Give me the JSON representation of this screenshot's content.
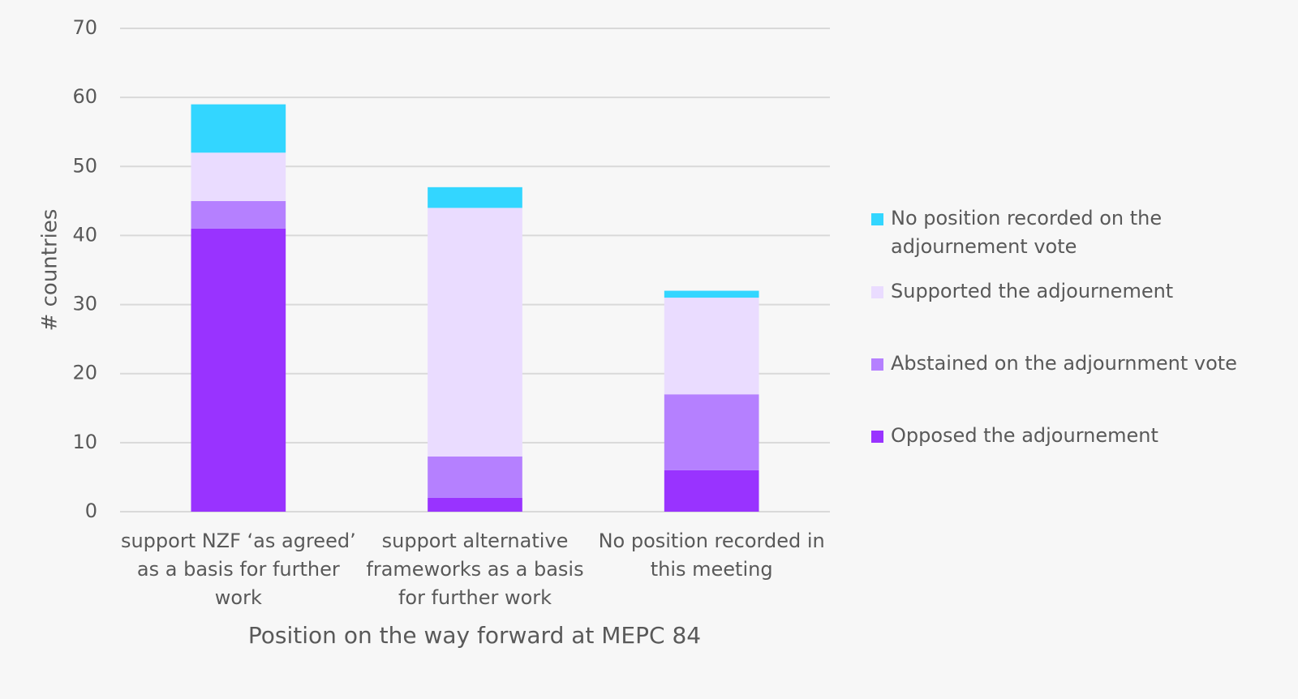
{
  "chart_data": {
    "type": "stacked_bar",
    "x_label": "Position on the way forward at MEPC 84",
    "y_label": "# countries",
    "categories": [
      "support NZF ‘as agreed’ as a basis for further work",
      "support alternative frameworks as a basis for further work",
      "No position recorded in this meeting"
    ],
    "series": [
      {
        "name": "Opposed the adjournement",
        "color": "#9933ff",
        "values": [
          41,
          2,
          6
        ]
      },
      {
        "name": "Abstained on the adjournment vote",
        "color": "#b580ff",
        "values": [
          4,
          6,
          11
        ]
      },
      {
        "name": "Supported the adjournement",
        "color": "#eadcff",
        "values": [
          7,
          36,
          14
        ]
      },
      {
        "name": "No position recorded on the adjournement vote",
        "color": "#33d6ff",
        "values": [
          7,
          3,
          1
        ]
      }
    ],
    "ylim": [
      0,
      70
    ],
    "yticks": [
      0,
      10,
      20,
      30,
      40,
      50,
      60,
      70
    ],
    "grid": true,
    "legend": "right"
  }
}
